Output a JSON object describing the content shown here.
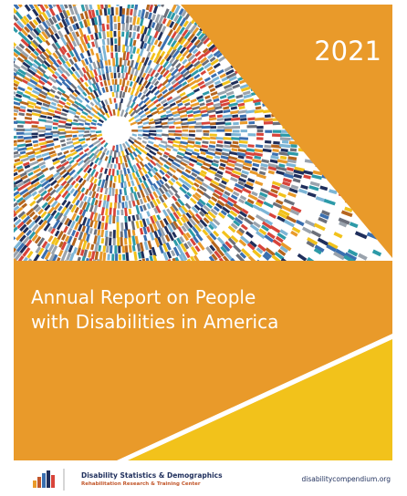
{
  "cover": {
    "year": "2021",
    "title_lines": [
      "Annual Report on People",
      "with Disabilities in America"
    ]
  },
  "footer": {
    "org_name": "Disability Statistics & Demographics",
    "org_subtitle": "Rehabilitation Research & Training Center",
    "url": "disabilitycompendium.org"
  }
}
